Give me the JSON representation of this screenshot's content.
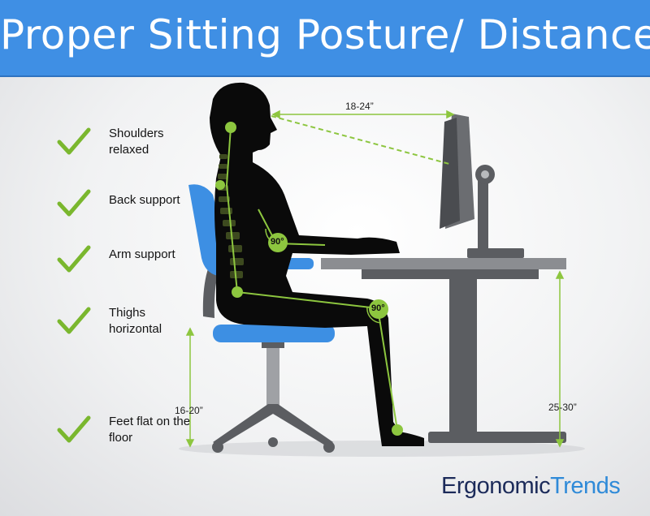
{
  "title": "Proper Sitting Posture/ Distances",
  "checklist": [
    {
      "icon": "checkmark-icon",
      "label": "Shoulders relaxed"
    },
    {
      "icon": "checkmark-icon",
      "label": "Back support"
    },
    {
      "icon": "checkmark-icon",
      "label": "Arm support"
    },
    {
      "icon": "checkmark-icon",
      "label": "Thighs horizontal"
    },
    {
      "icon": "checkmark-icon",
      "label": "Feet flat on the floor"
    }
  ],
  "measurements": {
    "eye_to_monitor": "18-24”",
    "seat_height": "16-20”",
    "desk_height": "25-30”"
  },
  "angles": {
    "elbow": "90°",
    "knee": "90°"
  },
  "brand": {
    "part1": "Ergonomic",
    "part2": "Trends"
  },
  "colors": {
    "title_bar": "#3f8fe4",
    "check": "#7ab72e",
    "chair_blue": "#3d8fe3",
    "silhouette": "#0a0a0a",
    "guide_green": "#8dc63f",
    "furniture_gray": "#5b5d61"
  }
}
